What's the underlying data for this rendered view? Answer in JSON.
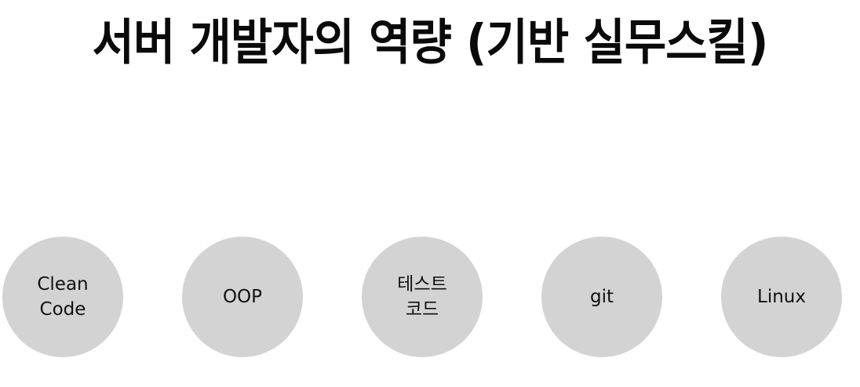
{
  "title": "서버 개발자의 역량 (기반 실무스킬)",
  "skills": [
    {
      "label": "Clean\nCode"
    },
    {
      "label": "OOP"
    },
    {
      "label": "테스트\n코드"
    },
    {
      "label": "git"
    },
    {
      "label": "Linux"
    }
  ],
  "colors": {
    "circle_fill": "#d3d3d3",
    "title_text": "#0a0a0a",
    "background": "#ffffff"
  }
}
